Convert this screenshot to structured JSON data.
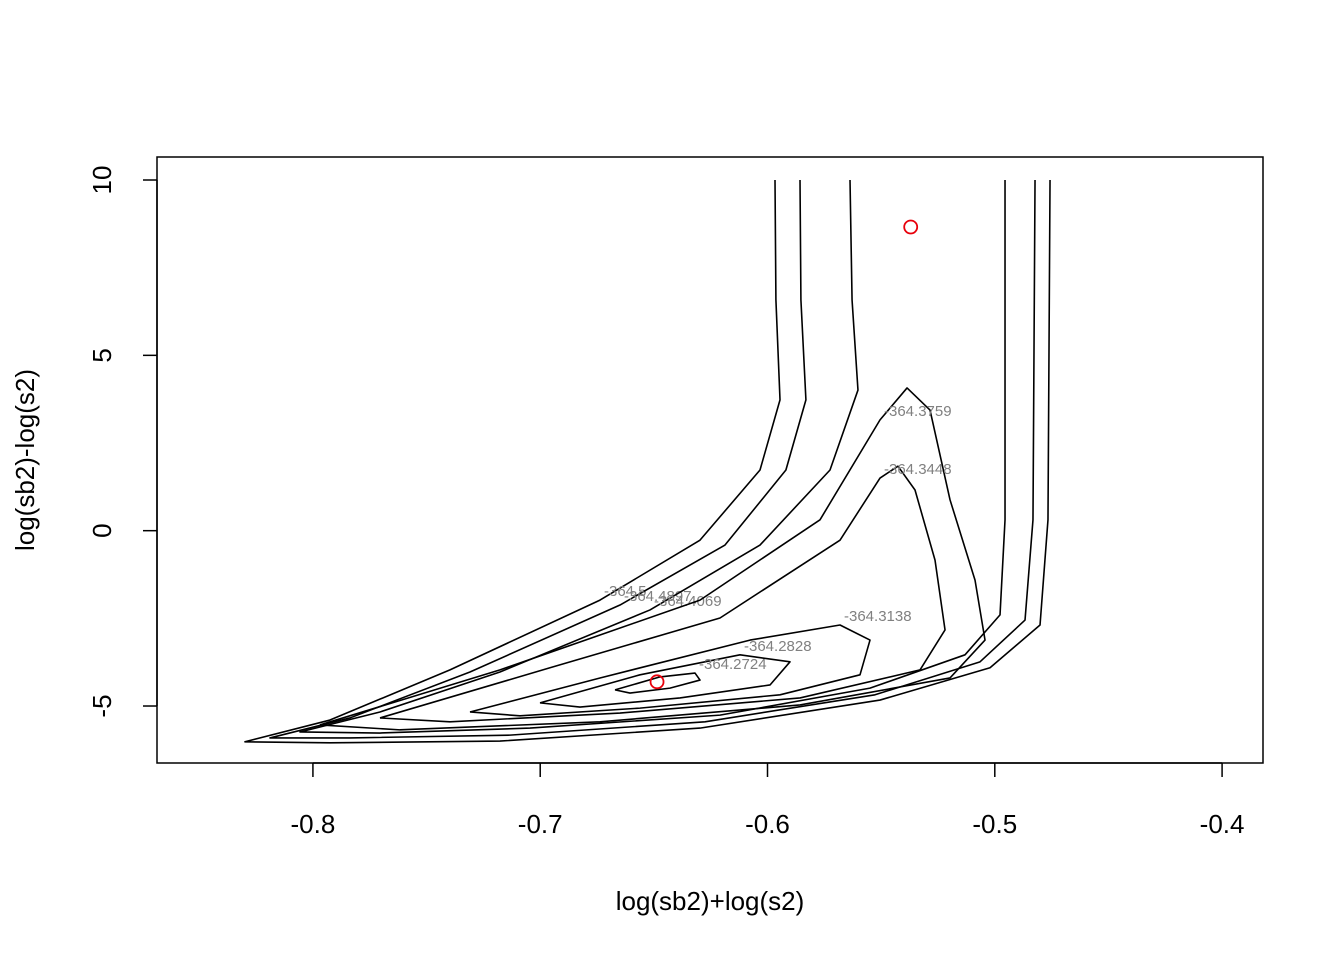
{
  "chart_data": {
    "type": "contour",
    "x_label": "log(sb2)+log(s2)",
    "y_label": "log(sb2)-log(s2)",
    "xlim": [
      -0.8686,
      -0.382
    ],
    "ylim": [
      -6.625,
      10.656
    ],
    "xticks": [
      -0.8,
      -0.7,
      -0.6,
      -0.5,
      -0.4
    ],
    "yticks": [
      -5,
      0,
      5,
      10
    ],
    "line_color": "#000000",
    "label_color": "#808080",
    "contours": [
      {
        "level": -364.5,
        "x": [
          -0.5967,
          -0.5963,
          -0.5945,
          -0.6033,
          -0.6297,
          -0.6737,
          -0.7397,
          -0.7925,
          -0.8299,
          -0.7925,
          -0.7177,
          -0.6297,
          -0.5505,
          -0.5021,
          -0.4801,
          -0.4766,
          -0.4757
        ],
        "y": [
          10,
          6.58,
          3.73,
          1.73,
          -0.27,
          -1.98,
          -3.97,
          -5.4,
          -6.02,
          -6.05,
          -6.0,
          -5.63,
          -4.83,
          -3.91,
          -2.69,
          0.31,
          10
        ]
      },
      {
        "level": -364.4897,
        "x": [
          -0.5857,
          -0.5853,
          -0.5831,
          -0.5919,
          -0.6187,
          -0.6649,
          -0.7309,
          -0.7837,
          -0.8189,
          -0.7837,
          -0.7133,
          -0.6275,
          -0.5527,
          -0.5065,
          -0.4867,
          -0.4832,
          -0.4823
        ],
        "y": [
          10,
          6.58,
          3.73,
          1.73,
          -0.41,
          -2.12,
          -4.03,
          -5.34,
          -5.91,
          -5.91,
          -5.83,
          -5.45,
          -4.68,
          -3.74,
          -2.55,
          0.31,
          10
        ]
      },
      {
        "level": -364.4069,
        "x": [
          -0.5637,
          -0.5628,
          -0.5602,
          -0.5725,
          -0.6033,
          -0.6517,
          -0.7177,
          -0.7705,
          -0.8057,
          -0.7705,
          -0.7045,
          -0.6209,
          -0.5549,
          -0.5131,
          -0.4977,
          -0.4955,
          -0.4955
        ],
        "y": [
          10,
          6.58,
          4.01,
          1.73,
          -0.41,
          -2.26,
          -4.03,
          -5.17,
          -5.74,
          -5.77,
          -5.63,
          -5.26,
          -4.49,
          -3.54,
          -2.4,
          0.31,
          10
        ]
      },
      {
        "level": -364.3759,
        "x": [
          -0.7969,
          -0.7177,
          -0.6297,
          -0.5769,
          -0.5505,
          -0.5386,
          -0.5285,
          -0.5197,
          -0.5087,
          -0.5043,
          -0.5197,
          -0.5857,
          -0.6737,
          -0.7617,
          -0.7969
        ],
        "y": [
          -5.54,
          -3.97,
          -1.98,
          0.31,
          3.16,
          4.07,
          3.44,
          0.88,
          -1.41,
          -3.12,
          -4.2,
          -4.97,
          -5.45,
          -5.68,
          -5.54
        ]
      },
      {
        "level": -364.3448,
        "x": [
          -0.7705,
          -0.6957,
          -0.6209,
          -0.5681,
          -0.5505,
          -0.5426,
          -0.5351,
          -0.5263,
          -0.5219,
          -0.5329,
          -0.5857,
          -0.6649,
          -0.7397,
          -0.7705
        ],
        "y": [
          -5.34,
          -3.91,
          -2.49,
          -0.27,
          1.5,
          1.84,
          1.16,
          -0.84,
          -2.83,
          -3.97,
          -4.77,
          -5.2,
          -5.45,
          -5.34
        ]
      },
      {
        "level": -364.3138,
        "x": [
          -0.7309,
          -0.6737,
          -0.6077,
          -0.5681,
          -0.5549,
          -0.5593,
          -0.5945,
          -0.6561,
          -0.7089,
          -0.7309
        ],
        "y": [
          -5.17,
          -4.2,
          -3.12,
          -2.69,
          -3.12,
          -4.11,
          -4.68,
          -5.06,
          -5.28,
          -5.17
        ]
      },
      {
        "level": -364.2828,
        "x": [
          -0.7001,
          -0.6561,
          -0.6121,
          -0.5901,
          -0.5989,
          -0.6385,
          -0.6825,
          -0.7001
        ],
        "y": [
          -4.91,
          -4.11,
          -3.54,
          -3.74,
          -4.4,
          -4.77,
          -5.03,
          -4.91
        ]
      },
      {
        "level": -364.2724,
        "x": [
          -0.6671,
          -0.6473,
          -0.6319,
          -0.6297,
          -0.6429,
          -0.6605,
          -0.6671
        ],
        "y": [
          -4.54,
          -4.17,
          -4.06,
          -4.26,
          -4.49,
          -4.63,
          -4.54
        ]
      }
    ],
    "points": {
      "color": "#e8000b",
      "x": [
        -0.537,
        -0.6486
      ],
      "y": [
        8.66,
        -4.31
      ]
    }
  }
}
